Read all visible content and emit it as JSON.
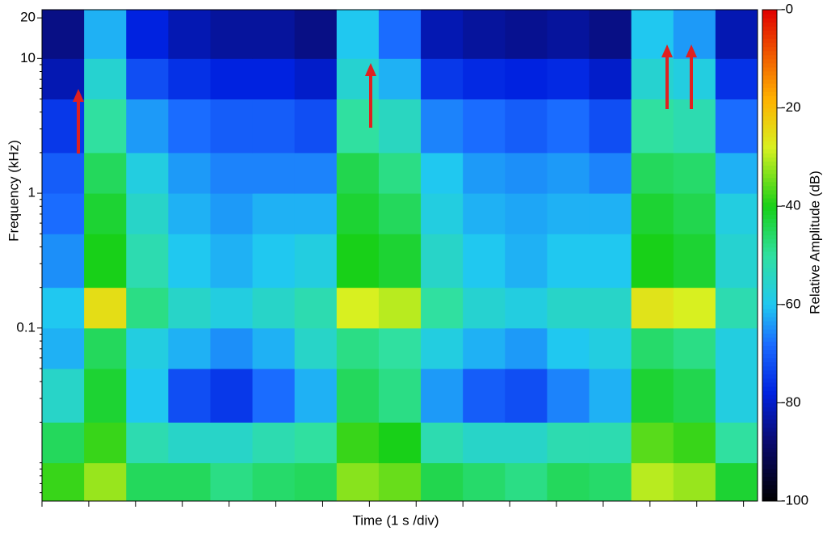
{
  "chart_data": {
    "type": "spectrogram",
    "xlabel": "Time (1 s /div)",
    "ylabel": "Frequency (kHz)",
    "colorbar_label": "Relative Amplitude (dB)",
    "xlim": [
      0,
      15.3
    ],
    "xtick_marks": [
      0,
      1,
      2,
      3,
      4,
      5,
      6,
      7,
      8,
      9,
      10,
      11,
      12,
      13,
      14,
      15
    ],
    "ylim": [
      0.0052,
      23
    ],
    "ylog": true,
    "yticks": [
      20,
      10,
      1,
      0.1
    ],
    "yminor_ticks": [
      0.006,
      0.007,
      0.008,
      0.009,
      0.01,
      0.02,
      0.03,
      0.04,
      0.05,
      0.06,
      0.07,
      0.08,
      0.09,
      0.2,
      0.3,
      0.4,
      0.5,
      0.6,
      0.7,
      0.8,
      0.9,
      2,
      3,
      4,
      5,
      6,
      7,
      8,
      9
    ],
    "clim": [
      -100,
      0
    ],
    "cticks": [
      {
        "value": 0,
        "label": "-0"
      },
      -20,
      -40,
      -60,
      -80,
      -100
    ],
    "colorscale": [
      {
        "value": -100,
        "color": "#000000"
      },
      {
        "value": -88,
        "color": "#0a0a6e"
      },
      {
        "value": -78,
        "color": "#0022e0"
      },
      {
        "value": -68,
        "color": "#1a6cff"
      },
      {
        "value": -60,
        "color": "#20c8f0"
      },
      {
        "value": -50,
        "color": "#30e0a0"
      },
      {
        "value": -40,
        "color": "#18d018"
      },
      {
        "value": -28,
        "color": "#d8f020"
      },
      {
        "value": -18,
        "color": "#ffb000"
      },
      {
        "value": 0,
        "color": "#e00000"
      }
    ],
    "time_bins": [
      0,
      0.9,
      1.8,
      2.7,
      3.6,
      4.5,
      5.4,
      6.3,
      7.2,
      8.1,
      9.0,
      9.9,
      10.8,
      11.7,
      12.6,
      13.5,
      14.4,
      15.3
    ],
    "freq_bins": [
      0.0052,
      0.01,
      0.02,
      0.05,
      0.1,
      0.2,
      0.5,
      1,
      2,
      5,
      10,
      23
    ],
    "z": [
      [
        -38,
        -32,
        -45,
        -45,
        -48,
        -46,
        -45,
        -33,
        -35,
        -44,
        -46,
        -48,
        -45,
        -46,
        -30,
        -32,
        -42
      ],
      [
        -45,
        -38,
        -52,
        -55,
        -55,
        -52,
        -50,
        -38,
        -40,
        -52,
        -55,
        -55,
        -52,
        -52,
        -36,
        -38,
        -50
      ],
      [
        -55,
        -42,
        -60,
        -72,
        -75,
        -68,
        -62,
        -45,
        -48,
        -64,
        -70,
        -72,
        -66,
        -62,
        -42,
        -44,
        -58
      ],
      [
        -62,
        -45,
        -58,
        -62,
        -65,
        -62,
        -55,
        -48,
        -50,
        -58,
        -62,
        -64,
        -60,
        -58,
        -46,
        -48,
        -58
      ],
      [
        -60,
        -25,
        -48,
        -55,
        -58,
        -55,
        -52,
        -28,
        -30,
        -50,
        -56,
        -58,
        -55,
        -55,
        -26,
        -28,
        -52
      ],
      [
        -65,
        -40,
        -52,
        -60,
        -62,
        -60,
        -58,
        -40,
        -42,
        -55,
        -60,
        -62,
        -60,
        -60,
        -40,
        -42,
        -56
      ],
      [
        -68,
        -42,
        -55,
        -62,
        -64,
        -62,
        -62,
        -42,
        -45,
        -58,
        -62,
        -63,
        -62,
        -62,
        -42,
        -44,
        -58
      ],
      [
        -70,
        -45,
        -58,
        -64,
        -66,
        -66,
        -66,
        -44,
        -48,
        -60,
        -64,
        -65,
        -64,
        -66,
        -45,
        -46,
        -62
      ],
      [
        -75,
        -50,
        -64,
        -68,
        -70,
        -70,
        -72,
        -50,
        -54,
        -66,
        -68,
        -70,
        -68,
        -72,
        -50,
        -52,
        -68
      ],
      [
        -82,
        -56,
        -72,
        -76,
        -78,
        -78,
        -80,
        -56,
        -62,
        -75,
        -77,
        -78,
        -77,
        -80,
        -56,
        -58,
        -76
      ],
      [
        -86,
        -62,
        -78,
        -82,
        -84,
        -84,
        -86,
        -60,
        -68,
        -82,
        -84,
        -85,
        -84,
        -86,
        -60,
        -64,
        -82
      ]
    ]
  }
}
